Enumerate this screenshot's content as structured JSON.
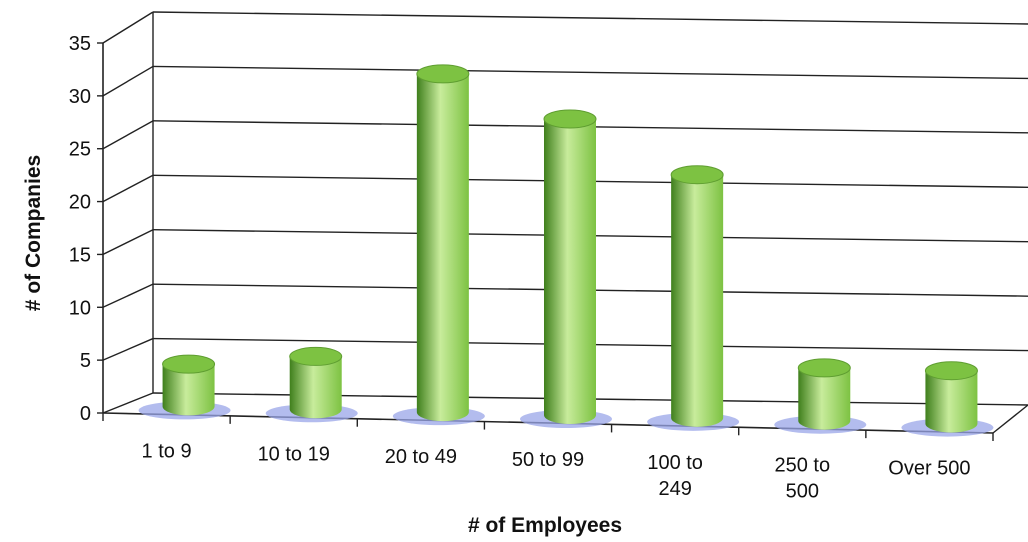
{
  "chart_data": {
    "type": "bar",
    "style": "3d-cylinder",
    "bar_color": "#7dc242",
    "bar_highlight": "#c8ec9c",
    "bar_shadow": "#3f7f1c",
    "shadow_color": "#9aa6e8",
    "categories": [
      [
        "1 to 9"
      ],
      [
        "10 to 19"
      ],
      [
        "20 to 49"
      ],
      [
        "50 to 99"
      ],
      [
        "100 to",
        "249"
      ],
      [
        "250 to",
        "500"
      ],
      [
        "Over 500"
      ]
    ],
    "values": [
      4,
      5,
      32,
      28,
      23,
      5,
      5
    ],
    "xlabel": "# of Employees",
    "ylabel": "# of Companies",
    "ylim": [
      0,
      35
    ],
    "yticks": [
      "0",
      "5",
      "10",
      "15",
      "20",
      "25",
      "30",
      "35"
    ],
    "grid": true,
    "legend": "none"
  }
}
